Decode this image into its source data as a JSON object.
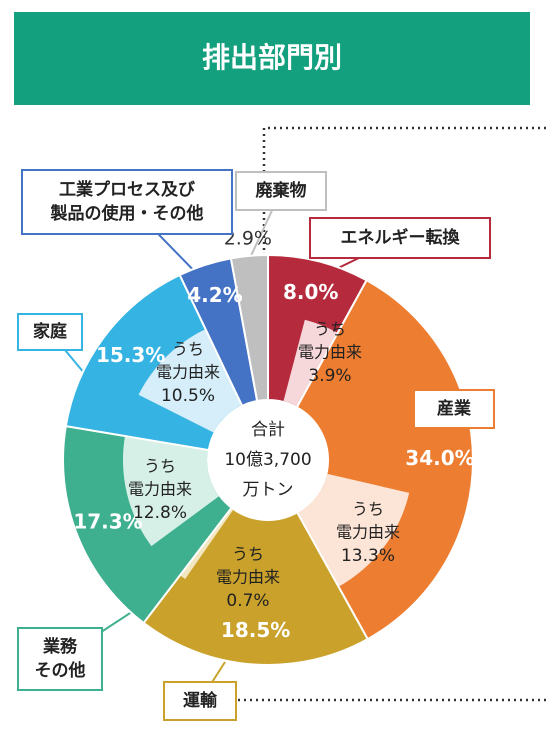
{
  "header": {
    "title": "排出部門別"
  },
  "chart_data": {
    "type": "donut",
    "categories": [
      [
        "エネルギー転換"
      ],
      [
        "産業"
      ],
      [
        "運輸"
      ],
      [
        "業務",
        "その他"
      ],
      [
        "家庭"
      ],
      [
        "工業プロセス及び",
        "製品の使用・その他"
      ],
      [
        "廃棄物"
      ]
    ],
    "values": [
      8.0,
      34.0,
      18.5,
      17.3,
      15.3,
      4.2,
      2.9
    ],
    "value_labels": [
      "8.0%",
      "34.0%",
      "18.5%",
      "17.3%",
      "15.3%",
      "4.2%",
      "2.9%"
    ],
    "colors": [
      "#b52a3c",
      "#ed7d31",
      "#c9a12b",
      "#3fb08f",
      "#35b3e3",
      "#4472c4",
      "#bfbfbf"
    ],
    "sub_label": [
      "うち",
      "電力由来"
    ],
    "sub_values": [
      3.9,
      13.3,
      0.7,
      12.8,
      10.5,
      null,
      null
    ],
    "sub_value_labels": [
      "3.9%",
      "13.3%",
      "0.7%",
      "12.8%",
      "10.5%",
      null,
      null
    ],
    "sub_colors": [
      "#f6d7da",
      "#fce4d6",
      "#f3e7c2",
      "#d7f0e7",
      "#d5eef9",
      null,
      null
    ],
    "center_label": [
      "合計",
      "10億3,700",
      "万トン"
    ]
  }
}
